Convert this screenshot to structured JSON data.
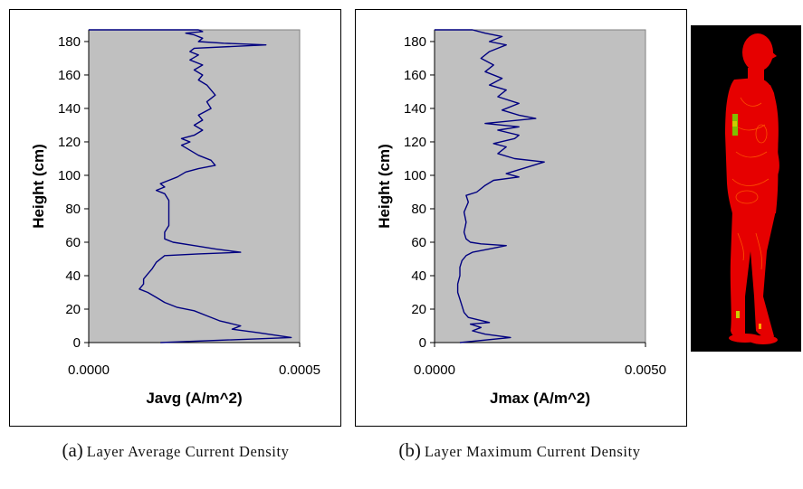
{
  "figure": {
    "caption_a": {
      "label": "(a)",
      "text": "Layer Average Current Density"
    },
    "caption_b": {
      "label": "(b)",
      "text": "Layer Maximum Current Density"
    },
    "body_image": {
      "background": "#000000",
      "body_color": "#e60000",
      "highlight_colors": [
        "#ffaa00",
        "#cccc00",
        "#7fbf00"
      ]
    }
  },
  "chart_data": [
    {
      "type": "line",
      "xlabel": "Javg (A/m^2)",
      "ylabel": "Height (cm)",
      "xlim": [
        0,
        0.0005
      ],
      "ylim": [
        0,
        187
      ],
      "x_ticks": [
        "0.0000",
        "0.0005"
      ],
      "y_ticks": [
        "0",
        "20",
        "40",
        "60",
        "80",
        "100",
        "120",
        "140",
        "160",
        "180"
      ],
      "plot_background": "#c0c0c0",
      "line_color": "#000080",
      "grid": false,
      "series": [
        {
          "points": [
            [
              0.00017,
              0
            ],
            [
              0.00048,
              3
            ],
            [
              0.0004,
              6
            ],
            [
              0.00034,
              8
            ],
            [
              0.00036,
              10
            ],
            [
              0.00031,
              13
            ],
            [
              0.00028,
              16
            ],
            [
              0.00025,
              19
            ],
            [
              0.00021,
              21
            ],
            [
              0.00018,
              24
            ],
            [
              0.00016,
              27
            ],
            [
              0.00014,
              30
            ],
            [
              0.00012,
              32
            ],
            [
              0.00013,
              35
            ],
            [
              0.00013,
              38
            ],
            [
              0.00014,
              41
            ],
            [
              0.00015,
              44
            ],
            [
              0.00016,
              48
            ],
            [
              0.00018,
              52
            ],
            [
              0.00026,
              53
            ],
            [
              0.00036,
              54
            ],
            [
              0.0003,
              56
            ],
            [
              0.00025,
              58
            ],
            [
              0.0002,
              60
            ],
            [
              0.00018,
              62
            ],
            [
              0.00018,
              66
            ],
            [
              0.00019,
              70
            ],
            [
              0.00019,
              75
            ],
            [
              0.00019,
              80
            ],
            [
              0.00019,
              85
            ],
            [
              0.00018,
              89
            ],
            [
              0.00016,
              91
            ],
            [
              0.00018,
              93
            ],
            [
              0.00017,
              95
            ],
            [
              0.00019,
              97
            ],
            [
              0.00021,
              99
            ],
            [
              0.00023,
              102
            ],
            [
              0.00026,
              104
            ],
            [
              0.0003,
              106
            ],
            [
              0.00029,
              109
            ],
            [
              0.00026,
              112
            ],
            [
              0.00024,
              115
            ],
            [
              0.00022,
              118
            ],
            [
              0.00024,
              120
            ],
            [
              0.00022,
              122
            ],
            [
              0.00025,
              124
            ],
            [
              0.00027,
              127
            ],
            [
              0.00025,
              130
            ],
            [
              0.00027,
              133
            ],
            [
              0.00026,
              136
            ],
            [
              0.00029,
              140
            ],
            [
              0.00028,
              144
            ],
            [
              0.0003,
              148
            ],
            [
              0.00029,
              151
            ],
            [
              0.00028,
              154
            ],
            [
              0.00026,
              157
            ],
            [
              0.00027,
              160
            ],
            [
              0.00025,
              163
            ],
            [
              0.00027,
              166
            ],
            [
              0.00024,
              169
            ],
            [
              0.00026,
              172
            ],
            [
              0.00024,
              174
            ],
            [
              0.00025,
              176
            ],
            [
              0.00042,
              178
            ],
            [
              0.00032,
              179
            ],
            [
              0.00026,
              180
            ],
            [
              0.00027,
              182
            ],
            [
              0.00025,
              184
            ],
            [
              0.00023,
              185
            ],
            [
              0.00027,
              186
            ],
            [
              0.00026,
              187
            ],
            [
              0.0,
              187
            ]
          ]
        }
      ]
    },
    {
      "type": "line",
      "xlabel": "Jmax (A/m^2)",
      "ylabel": "Height (cm)",
      "xlim": [
        0,
        0.005
      ],
      "ylim": [
        0,
        187
      ],
      "x_ticks": [
        "0.0000",
        "0.0050"
      ],
      "y_ticks": [
        "0",
        "20",
        "40",
        "60",
        "80",
        "100",
        "120",
        "140",
        "160",
        "180"
      ],
      "plot_background": "#c0c0c0",
      "line_color": "#000080",
      "grid": false,
      "series": [
        {
          "points": [
            [
              0.0006,
              0
            ],
            [
              0.0018,
              3
            ],
            [
              0.0012,
              5
            ],
            [
              0.0009,
              7
            ],
            [
              0.0011,
              9
            ],
            [
              0.00085,
              11
            ],
            [
              0.0013,
              12
            ],
            [
              0.0008,
              15
            ],
            [
              0.0007,
              18
            ],
            [
              0.00065,
              22
            ],
            [
              0.0006,
              26
            ],
            [
              0.00055,
              30
            ],
            [
              0.00055,
              35
            ],
            [
              0.0006,
              40
            ],
            [
              0.0006,
              45
            ],
            [
              0.00065,
              49
            ],
            [
              0.00075,
              52
            ],
            [
              0.0009,
              54
            ],
            [
              0.0013,
              56
            ],
            [
              0.0017,
              58
            ],
            [
              0.0011,
              59
            ],
            [
              0.00085,
              60
            ],
            [
              0.00075,
              62
            ],
            [
              0.0007,
              66
            ],
            [
              0.00075,
              72
            ],
            [
              0.0007,
              78
            ],
            [
              0.0008,
              84
            ],
            [
              0.00075,
              88
            ],
            [
              0.001,
              90
            ],
            [
              0.0012,
              94
            ],
            [
              0.0014,
              97
            ],
            [
              0.002,
              99
            ],
            [
              0.0017,
              101
            ],
            [
              0.0026,
              108
            ],
            [
              0.0019,
              110
            ],
            [
              0.0015,
              113
            ],
            [
              0.0017,
              117
            ],
            [
              0.0014,
              119
            ],
            [
              0.0019,
              122
            ],
            [
              0.002,
              124
            ],
            [
              0.0015,
              127
            ],
            [
              0.002,
              129
            ],
            [
              0.0012,
              131
            ],
            [
              0.0024,
              134
            ],
            [
              0.002,
              136
            ],
            [
              0.0016,
              139
            ],
            [
              0.002,
              143
            ],
            [
              0.0015,
              147
            ],
            [
              0.0017,
              151
            ],
            [
              0.0013,
              154
            ],
            [
              0.0016,
              158
            ],
            [
              0.0012,
              162
            ],
            [
              0.0014,
              166
            ],
            [
              0.0011,
              170
            ],
            [
              0.0013,
              174
            ],
            [
              0.0015,
              176
            ],
            [
              0.0017,
              178
            ],
            [
              0.0013,
              180
            ],
            [
              0.0016,
              183
            ],
            [
              0.0012,
              185
            ],
            [
              0.0009,
              187
            ],
            [
              0.0,
              187
            ]
          ]
        }
      ]
    }
  ]
}
